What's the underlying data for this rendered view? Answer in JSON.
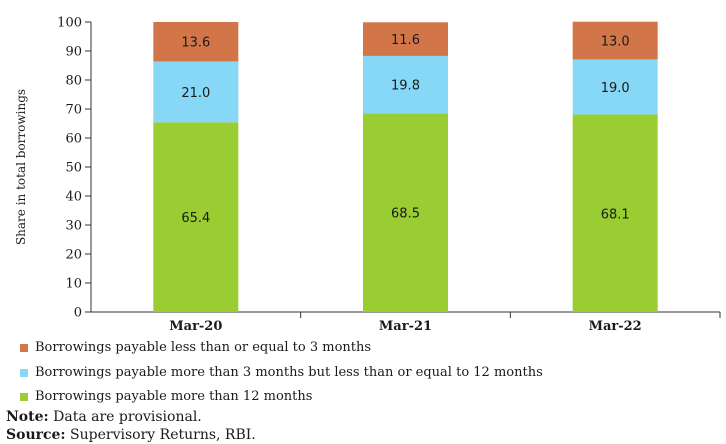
{
  "chart_data": {
    "type": "stacked-bar",
    "categories": [
      "Mar-20",
      "Mar-21",
      "Mar-22"
    ],
    "series": [
      {
        "name": "Borrowings payable more than 12 months",
        "color": "#9ACD32",
        "values": [
          65.4,
          68.5,
          68.1
        ]
      },
      {
        "name": "Borrowings payable more than 3 months but less than or equal to 12 months",
        "color": "#87D8F7",
        "values": [
          21.0,
          19.8,
          19.0
        ]
      },
      {
        "name": "Borrowings payable less than or equal to 3 months",
        "color": "#D2764A",
        "values": [
          13.6,
          11.6,
          13.0
        ]
      }
    ],
    "data_labels": [
      [
        "65.4",
        "68.5",
        "68.1"
      ],
      [
        "21.0",
        "19.8",
        "19.0"
      ],
      [
        "13.6",
        "11.6",
        "13.0"
      ]
    ],
    "ylabel": "Share in total borrowings",
    "ylim": [
      0,
      100
    ],
    "yticks": [
      0,
      10,
      20,
      30,
      40,
      50,
      60,
      70,
      80,
      90,
      100
    ],
    "grid": false,
    "legend_position": "bottom"
  },
  "legend_order": [
    2,
    1,
    0
  ],
  "notes": {
    "note_label": "Note:",
    "note_text": " Data are provisional.",
    "source_label": "Source:",
    "source_text": " Supervisory Returns, RBI."
  }
}
